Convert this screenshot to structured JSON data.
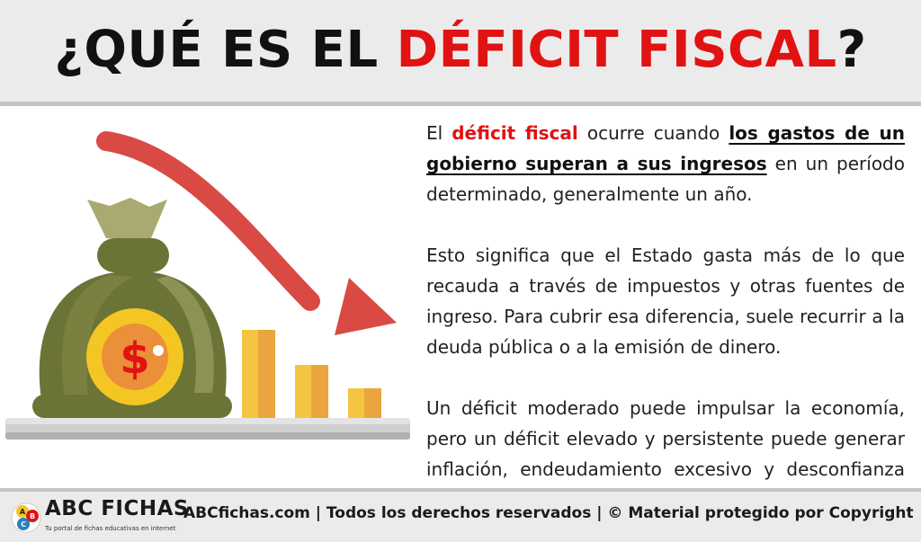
{
  "header": {
    "title_part1": "¿QUÉ ES EL ",
    "title_highlight": "DÉFICIT FISCAL",
    "title_part2": "?"
  },
  "body": {
    "p1": {
      "a": "El ",
      "keyword": "déficit fiscal",
      "b": " ocurre cuando ",
      "underlined": "los gastos de un gobierno superan a sus ingresos",
      "c": " en un período determinado, generalmente un año."
    },
    "p2": "Esto significa que el Estado gasta más de lo que recauda a través de impuestos y otras fuentes de ingreso. Para cubrir esa diferencia, suele recurrir a la deuda pública o a la emisión de dinero.",
    "p3": "Un déficit moderado puede impulsar la economía, pero un déficit elevado y persistente puede generar inflación, endeudamiento excesivo y desconfianza en los mercados."
  },
  "illustration": {
    "coin_symbol": "$",
    "icons": [
      "money-bag-icon",
      "coin-icon",
      "down-arrow-icon",
      "bar-chart-icon"
    ]
  },
  "footer": {
    "logo_letters": [
      "A",
      "B",
      "C"
    ],
    "brand": "ABC FICHAS",
    "tagline": "Tu portal de fichas educativas en internet",
    "text": "ABCfichas.com | Todos los derechos reservados | © Material protegido por Copyright"
  },
  "colors": {
    "red": "#e11212",
    "arrow": "#d94a45",
    "bag_dark": "#6b7436",
    "bag_light": "#aaa971",
    "coin": "#f3c623",
    "coin_inner": "#eb8f3a",
    "bar_yellow": "#f5c542",
    "bar_orange": "#eaa53e",
    "shelf": "#cfcfcf",
    "band": "#ebebeb"
  }
}
